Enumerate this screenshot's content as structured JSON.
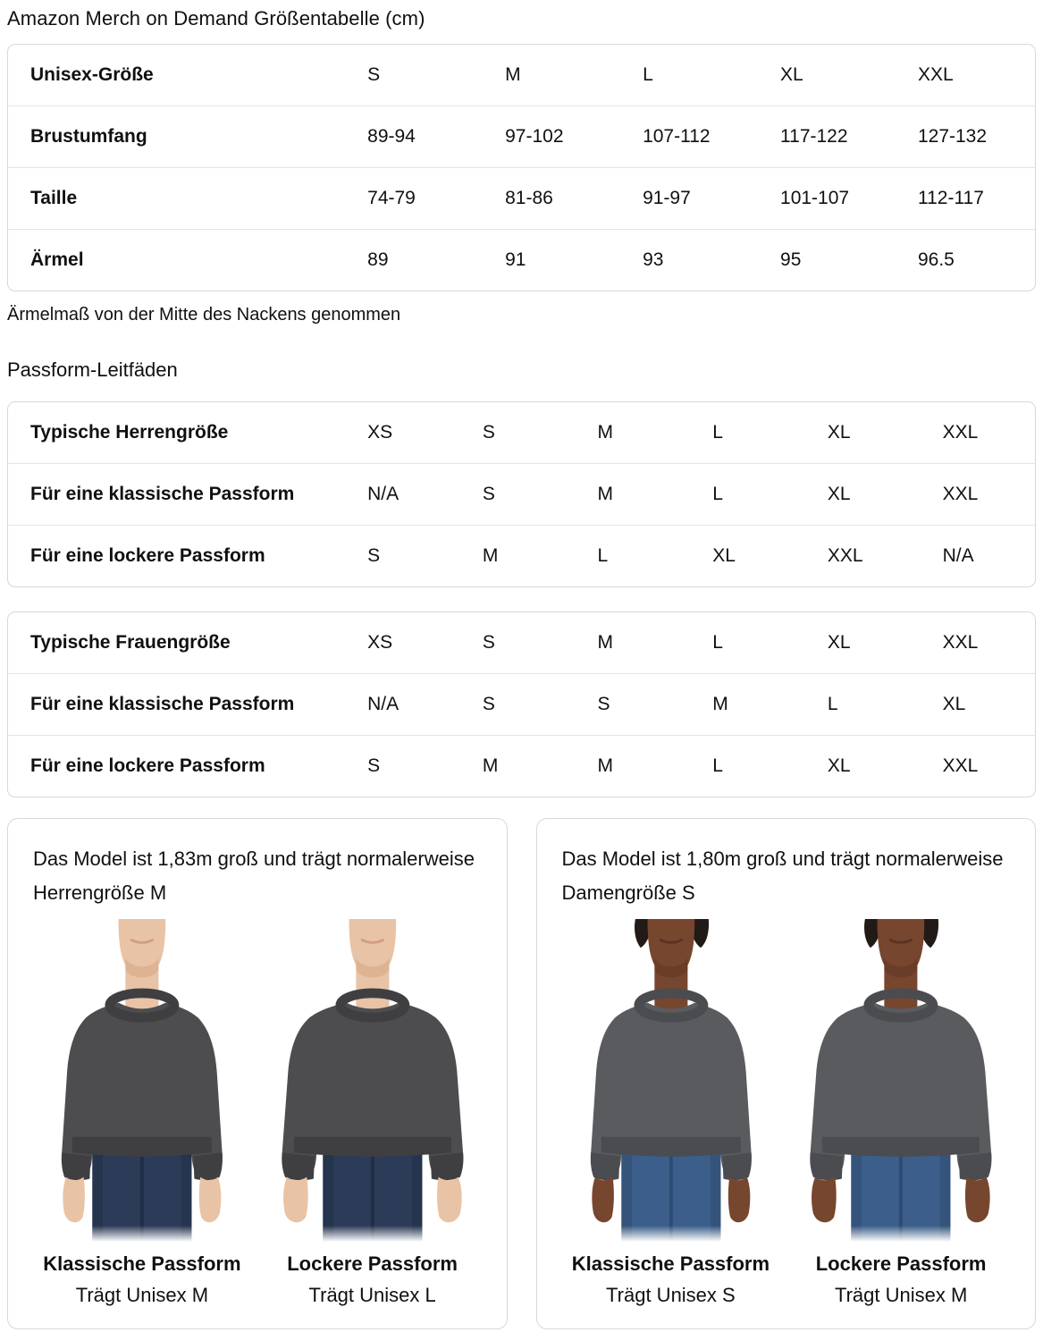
{
  "page": {
    "title": "Amazon Merch on Demand Größentabelle (cm)",
    "note": "Ärmelmaß von der Mitte des Nackens genommen",
    "fit_guides_heading": "Passform-Leitfäden"
  },
  "size_table": {
    "rows": [
      {
        "label": "Unisex-Größe",
        "values": [
          "S",
          "M",
          "L",
          "XL",
          "XXL"
        ]
      },
      {
        "label": "Brustumfang",
        "values": [
          "89-94",
          "97-102",
          "107-112",
          "117-122",
          "127-132"
        ]
      },
      {
        "label": "Taille",
        "values": [
          "74-79",
          "81-86",
          "91-97",
          "101-107",
          "112-117"
        ]
      },
      {
        "label": "Ärmel",
        "values": [
          "89",
          "91",
          "93",
          "95",
          "96.5"
        ]
      }
    ]
  },
  "fit_tables": [
    {
      "rows": [
        {
          "label": "Typische Herrengröße",
          "values": [
            "XS",
            "S",
            "M",
            "L",
            "XL",
            "XXL"
          ]
        },
        {
          "label": "Für eine klassische Passform",
          "values": [
            "N/A",
            "S",
            "M",
            "L",
            "XL",
            "XXL"
          ]
        },
        {
          "label": "Für eine lockere Passform",
          "values": [
            "S",
            "M",
            "L",
            "XL",
            "XXL",
            "N/A"
          ]
        }
      ]
    },
    {
      "rows": [
        {
          "label": "Typische Frauengröße",
          "values": [
            "XS",
            "S",
            "M",
            "L",
            "XL",
            "XXL"
          ]
        },
        {
          "label": "Für eine klassische Passform",
          "values": [
            "N/A",
            "S",
            "S",
            "M",
            "L",
            "XL"
          ]
        },
        {
          "label": "Für eine lockere Passform",
          "values": [
            "S",
            "M",
            "M",
            "L",
            "XL",
            "XXL"
          ]
        }
      ]
    }
  ],
  "cards": [
    {
      "description": "Das Model ist 1,83m groß und trägt normalerweise Herrengröße M",
      "figures": [
        {
          "model": "male",
          "fit": "classic",
          "fit_label": "Klassische Passform",
          "size_label": "Trägt Unisex M"
        },
        {
          "model": "male",
          "fit": "loose",
          "fit_label": "Lockere Passform",
          "size_label": "Trägt Unisex L"
        }
      ]
    },
    {
      "description": "Das Model ist 1,80m groß und trägt normalerweise Damengröße S",
      "figures": [
        {
          "model": "female",
          "fit": "classic",
          "fit_label": "Klassische Passform",
          "size_label": "Trägt Unisex S"
        },
        {
          "model": "female",
          "fit": "loose",
          "fit_label": "Lockere Passform",
          "size_label": "Trägt Unisex M"
        }
      ]
    }
  ],
  "colors": {
    "shirt_male": "#4D4D50",
    "shirt_male_dark": "#3F3F42",
    "shirt_female": "#5A5B5F",
    "shirt_female_dark": "#4B4C50",
    "jeans_male": "#2C3C58",
    "jeans_male_dark": "#202F47",
    "jeans_female": "#3C5E8A",
    "jeans_female_dark": "#2E4C71",
    "skin_male": "#E9C3A5",
    "skin_male_dark": "#CFA080",
    "skin_female": "#77462F",
    "skin_female_dark": "#5C3322",
    "hair_female": "#221A16"
  }
}
